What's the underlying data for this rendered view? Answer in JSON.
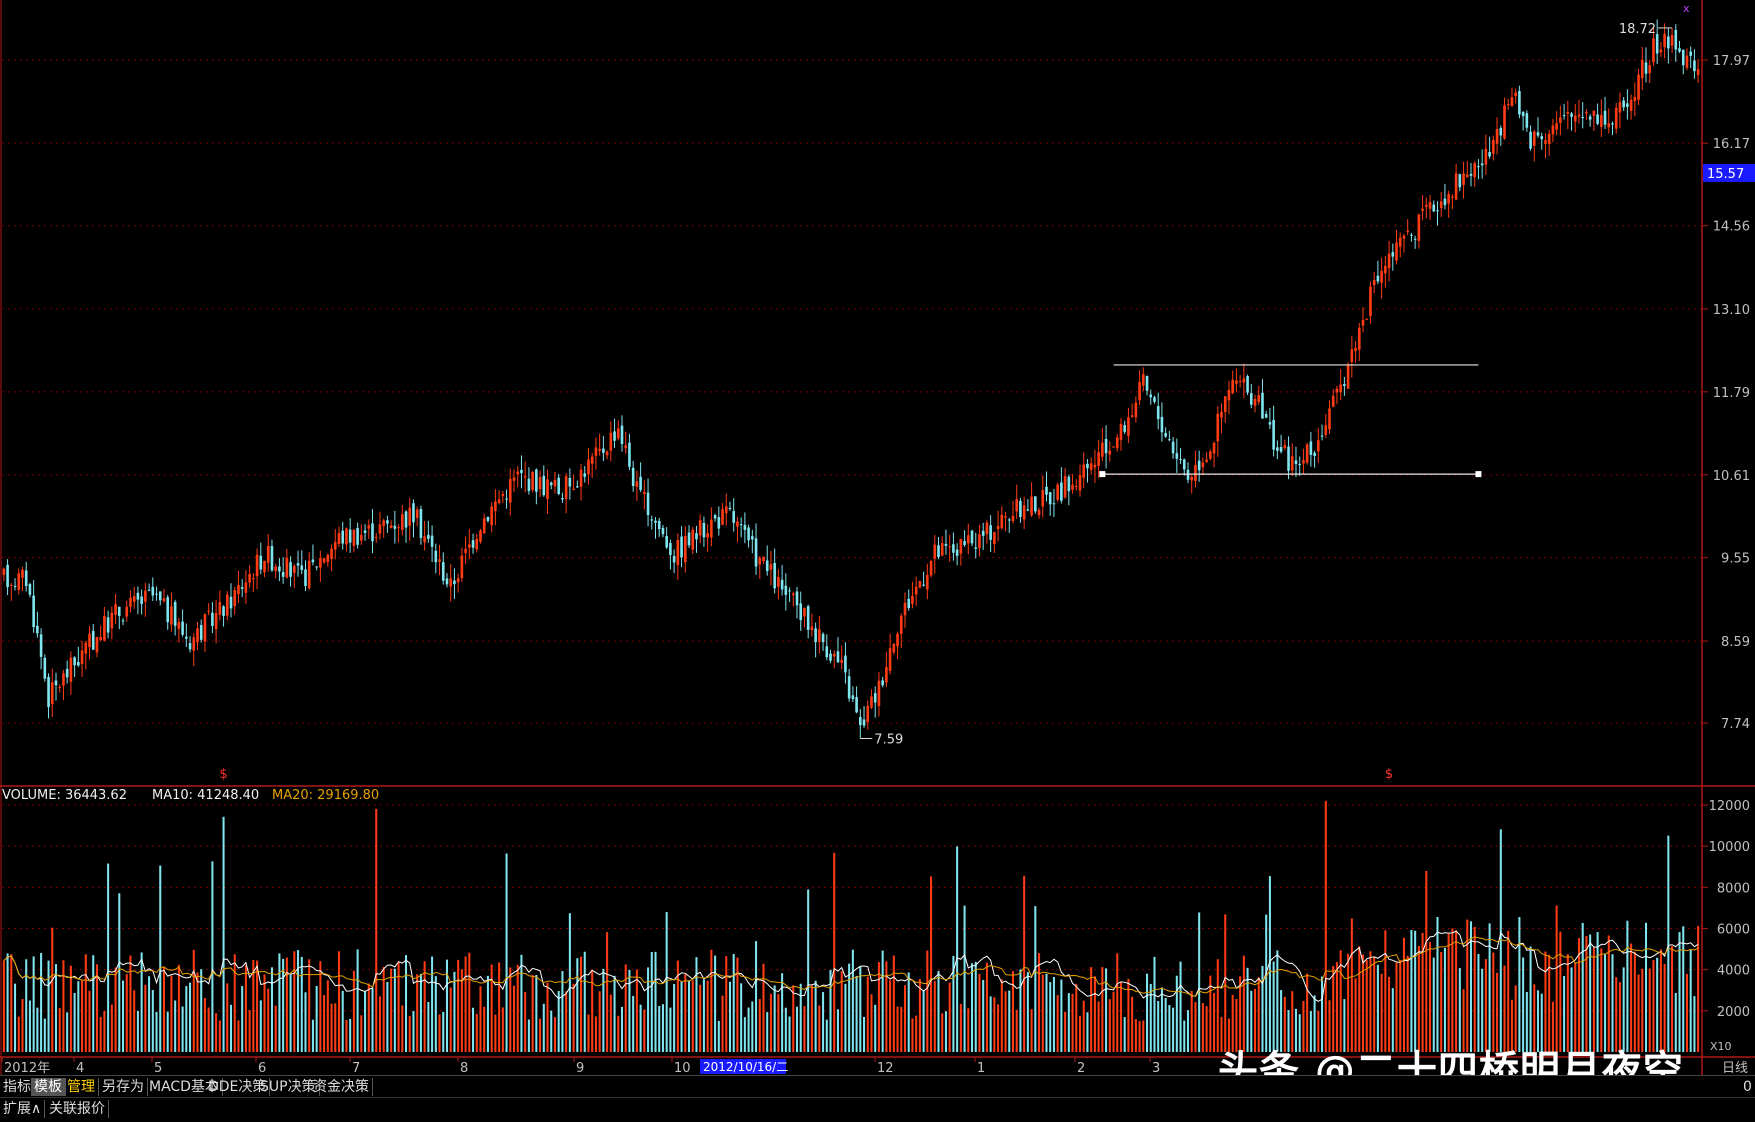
{
  "price_axis": {
    "ticks": [
      "17.97",
      "16.17",
      "14.56",
      "13.10",
      "11.79",
      "10.61",
      "9.55",
      "8.59",
      "7.74"
    ]
  },
  "current_price_label": "15.57",
  "high_label": "18.72",
  "low_label": "7.59",
  "volume_header": {
    "volume_text": "VOLUME: 36443.62",
    "ma10_text": "MA10: 41248.40",
    "ma20_text": "MA20: 29169.80"
  },
  "volume_axis": {
    "ticks": [
      "12000",
      "10000",
      "8000",
      "6000",
      "4000",
      "2000"
    ],
    "unit": "X10"
  },
  "time_axis": {
    "labels": [
      "2012年",
      "4",
      "5",
      "6",
      "7",
      "8",
      "9",
      "10",
      "12",
      "1",
      "2",
      "3"
    ],
    "cursor_date": "2012/10/16/二",
    "period": "日线"
  },
  "signal_markers": [
    "$",
    "$"
  ],
  "toolbar": {
    "tabs": [
      "指标",
      "模板",
      "管理",
      "另存为",
      "MACD基本",
      "DDE决策",
      "SUP决策",
      "资金决策"
    ],
    "right_value": "0"
  },
  "toolbar2": {
    "tabs": [
      "扩展∧",
      "关联报价"
    ]
  },
  "watermark": "头条 @二十四桥明月夜空",
  "colors": {
    "up": "#ff3c14",
    "down": "#7fe6f0",
    "grid": "#7a0000",
    "ma10": "#ffffff",
    "ma20": "#e6a000",
    "axis_text": "#c0c0c0",
    "current_bg": "#1a1aff"
  },
  "chart_data": {
    "type": "candlestick",
    "price_range": [
      7.59,
      18.72
    ],
    "waypoints": [
      [
        0,
        9.3
      ],
      [
        6,
        9.3
      ],
      [
        12,
        8.0
      ],
      [
        20,
        8.4
      ],
      [
        30,
        8.9
      ],
      [
        40,
        9.1
      ],
      [
        50,
        8.6
      ],
      [
        60,
        9.0
      ],
      [
        70,
        9.6
      ],
      [
        80,
        9.3
      ],
      [
        90,
        9.8
      ],
      [
        100,
        9.9
      ],
      [
        110,
        10.1
      ],
      [
        120,
        9.2
      ],
      [
        128,
        10.0
      ],
      [
        138,
        10.6
      ],
      [
        150,
        10.4
      ],
      [
        160,
        10.9
      ],
      [
        165,
        11.3
      ],
      [
        170,
        10.4
      ],
      [
        180,
        9.6
      ],
      [
        190,
        10.0
      ],
      [
        195,
        10.1
      ],
      [
        200,
        9.7
      ],
      [
        210,
        9.1
      ],
      [
        220,
        8.6
      ],
      [
        225,
        8.3
      ],
      [
        230,
        7.7
      ],
      [
        235,
        8.1
      ],
      [
        240,
        8.8
      ],
      [
        250,
        9.6
      ],
      [
        260,
        9.7
      ],
      [
        270,
        10.1
      ],
      [
        280,
        10.3
      ],
      [
        290,
        10.6
      ],
      [
        300,
        11.2
      ],
      [
        306,
        11.9
      ],
      [
        312,
        11.2
      ],
      [
        318,
        10.6
      ],
      [
        324,
        11.0
      ],
      [
        330,
        11.95
      ],
      [
        336,
        11.7
      ],
      [
        342,
        11.0
      ],
      [
        347,
        10.7
      ],
      [
        352,
        11.0
      ],
      [
        358,
        11.7
      ],
      [
        363,
        12.6
      ],
      [
        370,
        13.8
      ],
      [
        380,
        14.6
      ],
      [
        390,
        15.4
      ],
      [
        400,
        16.0
      ],
      [
        405,
        17.2
      ],
      [
        410,
        16.3
      ],
      [
        418,
        16.6
      ],
      [
        425,
        16.9
      ],
      [
        432,
        16.6
      ],
      [
        438,
        17.4
      ],
      [
        443,
        18.2
      ],
      [
        448,
        18.5
      ],
      [
        452,
        17.9
      ]
    ],
    "volume_max": 12000,
    "volume_axis": [
      "2000",
      "4000",
      "6000",
      "8000",
      "10000",
      "12000"
    ],
    "levels": {
      "resistance": 12.2,
      "support": 10.62
    }
  }
}
